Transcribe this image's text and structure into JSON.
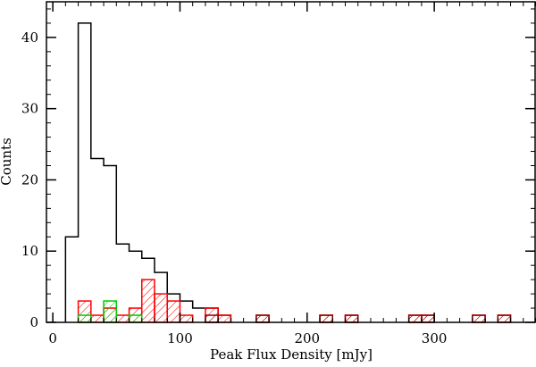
{
  "chart_data": {
    "type": "bar",
    "subtype": "step-histogram",
    "title": "",
    "xlabel": "Peak Flux Density [mJy]",
    "ylabel": "Counts",
    "xlim": [
      -5,
      380
    ],
    "ylim": [
      0,
      45
    ],
    "xticks": [
      0,
      100,
      200,
      300
    ],
    "xtick_labels": [
      "0",
      "100",
      "200",
      "300"
    ],
    "yticks": [
      0,
      10,
      20,
      30,
      40
    ],
    "ytick_labels": [
      "0",
      "10",
      "20",
      "30",
      "40"
    ],
    "x_minor_step": 10,
    "y_minor_step": 2,
    "grid": false,
    "legend": "none",
    "bin_width": 10,
    "series": [
      {
        "color": "#000000",
        "hatch": false,
        "bins": [
          [
            10,
            12
          ],
          [
            20,
            42
          ],
          [
            30,
            23
          ],
          [
            40,
            22
          ],
          [
            50,
            11
          ],
          [
            60,
            10
          ],
          [
            70,
            9
          ],
          [
            80,
            7
          ],
          [
            90,
            4
          ],
          [
            100,
            3
          ],
          [
            110,
            2
          ],
          [
            120,
            2
          ],
          [
            130,
            1
          ]
        ]
      },
      {
        "color": "#ff0000",
        "hatch": true,
        "bins": [
          [
            20,
            3
          ],
          [
            30,
            1
          ],
          [
            40,
            2
          ],
          [
            50,
            1
          ],
          [
            60,
            2
          ],
          [
            70,
            6
          ],
          [
            80,
            4
          ],
          [
            90,
            3
          ],
          [
            100,
            1
          ],
          [
            120,
            2
          ],
          [
            130,
            1
          ],
          [
            160,
            1
          ],
          [
            210,
            1
          ],
          [
            230,
            1
          ],
          [
            280,
            1
          ],
          [
            290,
            1
          ],
          [
            330,
            1
          ],
          [
            350,
            1
          ]
        ]
      },
      {
        "color": "#00cc00",
        "hatch": true,
        "bins": [
          [
            20,
            1
          ],
          [
            40,
            3
          ],
          [
            60,
            1
          ]
        ]
      },
      {
        "color": "#8b0000",
        "hatch": false,
        "bins": [
          [
            120,
            1
          ],
          [
            160,
            1
          ],
          [
            210,
            1
          ],
          [
            230,
            1
          ],
          [
            280,
            1
          ],
          [
            290,
            1
          ],
          [
            330,
            1
          ],
          [
            350,
            1
          ]
        ]
      }
    ]
  }
}
